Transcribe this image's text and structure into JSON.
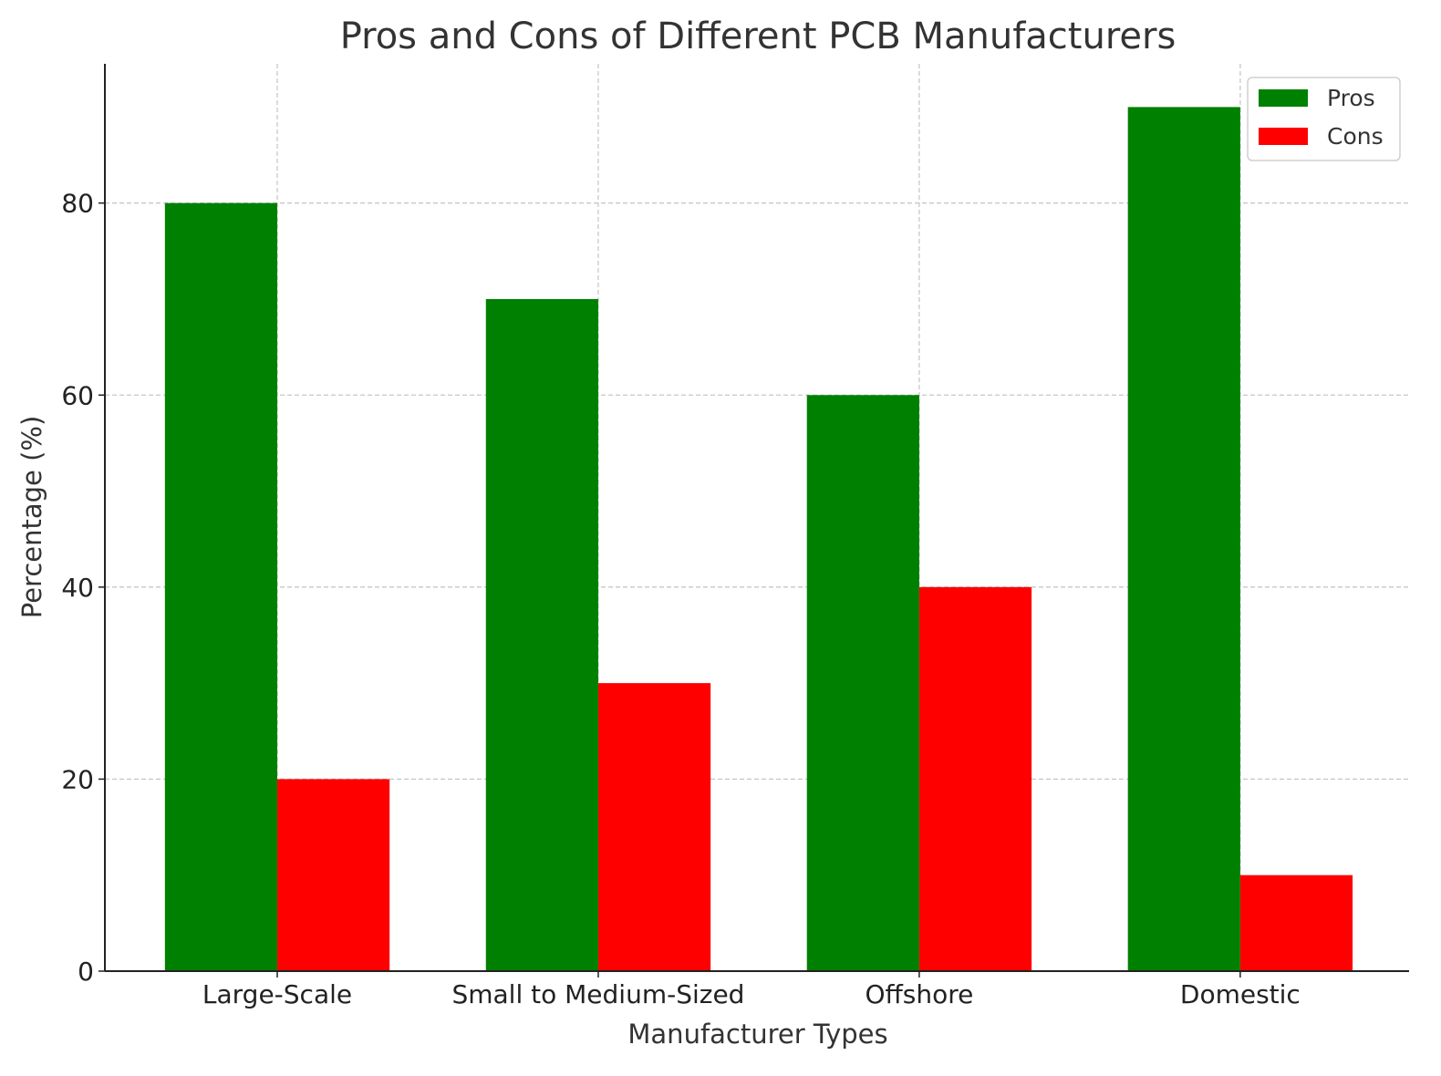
{
  "chart_data": {
    "type": "bar",
    "title": "Pros and Cons of Different PCB Manufacturers",
    "xlabel": "Manufacturer Types",
    "ylabel": "Percentage (%)",
    "categories": [
      "Large-Scale",
      "Small to Medium-Sized",
      "Offshore",
      "Domestic"
    ],
    "series": [
      {
        "name": "Pros",
        "values": [
          80,
          70,
          60,
          90
        ],
        "color": "#008000"
      },
      {
        "name": "Cons",
        "values": [
          20,
          30,
          40,
          10
        ],
        "color": "#ff0000"
      }
    ],
    "ylim": [
      0,
      94.5
    ],
    "yticks": [
      0,
      20,
      40,
      60,
      80
    ],
    "grid": true,
    "legend": "top-right"
  }
}
